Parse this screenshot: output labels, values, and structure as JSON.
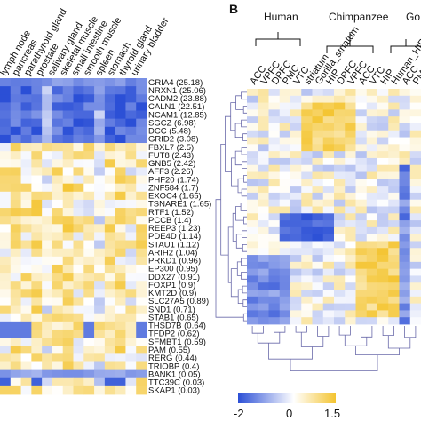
{
  "panel_b_label": "B",
  "species_labels": [
    "Human",
    "Chimpanzee",
    "Go"
  ],
  "chart_data": {
    "type": "heatmap",
    "tissues": [
      "lymph node",
      "pancreas",
      "parathyroid gland",
      "prostate",
      "salivary gland",
      "skeletal muscle",
      "small intestine",
      "smooth muscle",
      "spleen",
      "stomach",
      "thyroid gland",
      "urinary bladder"
    ],
    "genes": [
      "GRIA4 (25.18)",
      "NRXN1 (25.06)",
      "CADM2 (23.88)",
      "CALN1 (22.51)",
      "NCAM1 (12.85)",
      "SGCZ (6.98)",
      "DCC (5.48)",
      "GRID2 (3.08)",
      "FBXL7 (2.5)",
      "FUT8 (2.43)",
      "GNB5 (2.42)",
      "AFF3 (2.26)",
      "PHF20 (1.74)",
      "ZNF584 (1.7)",
      "EXOC4 (1.65)",
      "TSNARE1 (1.65)",
      "RTF1 (1.52)",
      "PCCB (1.4)",
      "REEP3 (1.23)",
      "PDE4D (1.14)",
      "STAU1 (1.12)",
      "ARIH2 (1.04)",
      "PRKD1 (0.96)",
      "EP300 (0.95)",
      "DDX27 (0.91)",
      "FOXP1 (0.9)",
      "KMT2D (0.9)",
      "SLC27A5 (0.89)",
      "SND1 (0.71)",
      "STAB1 (0.65)",
      "THSD7B (0.64)",
      "TFDP2 (0.62)",
      "SFMBT1 (0.59)",
      "PAM (0.55)",
      "RERG (0.44)",
      "TRIOBP (0.4)",
      "BANK1 (0.05)",
      "TTC39C (0.03)",
      "SKAP1 (0.03)"
    ],
    "brain_regions": [
      "ACC",
      "VPFC",
      "DPFC",
      "PMC",
      "VTC",
      "striatum",
      "Gorilla_striatum",
      "HIP",
      "DPFC",
      "VPFC",
      "ACC",
      "VTC",
      "HIP",
      "Human_HIP",
      "ACC",
      "PMC"
    ],
    "colorbar": {
      "ticks": [
        "-2",
        "0",
        "1.5"
      ],
      "min": -2,
      "max": 1.5,
      "low_color": "#2b4fd6",
      "mid_color": "#ffffff",
      "high_color": "#f4c430"
    }
  }
}
